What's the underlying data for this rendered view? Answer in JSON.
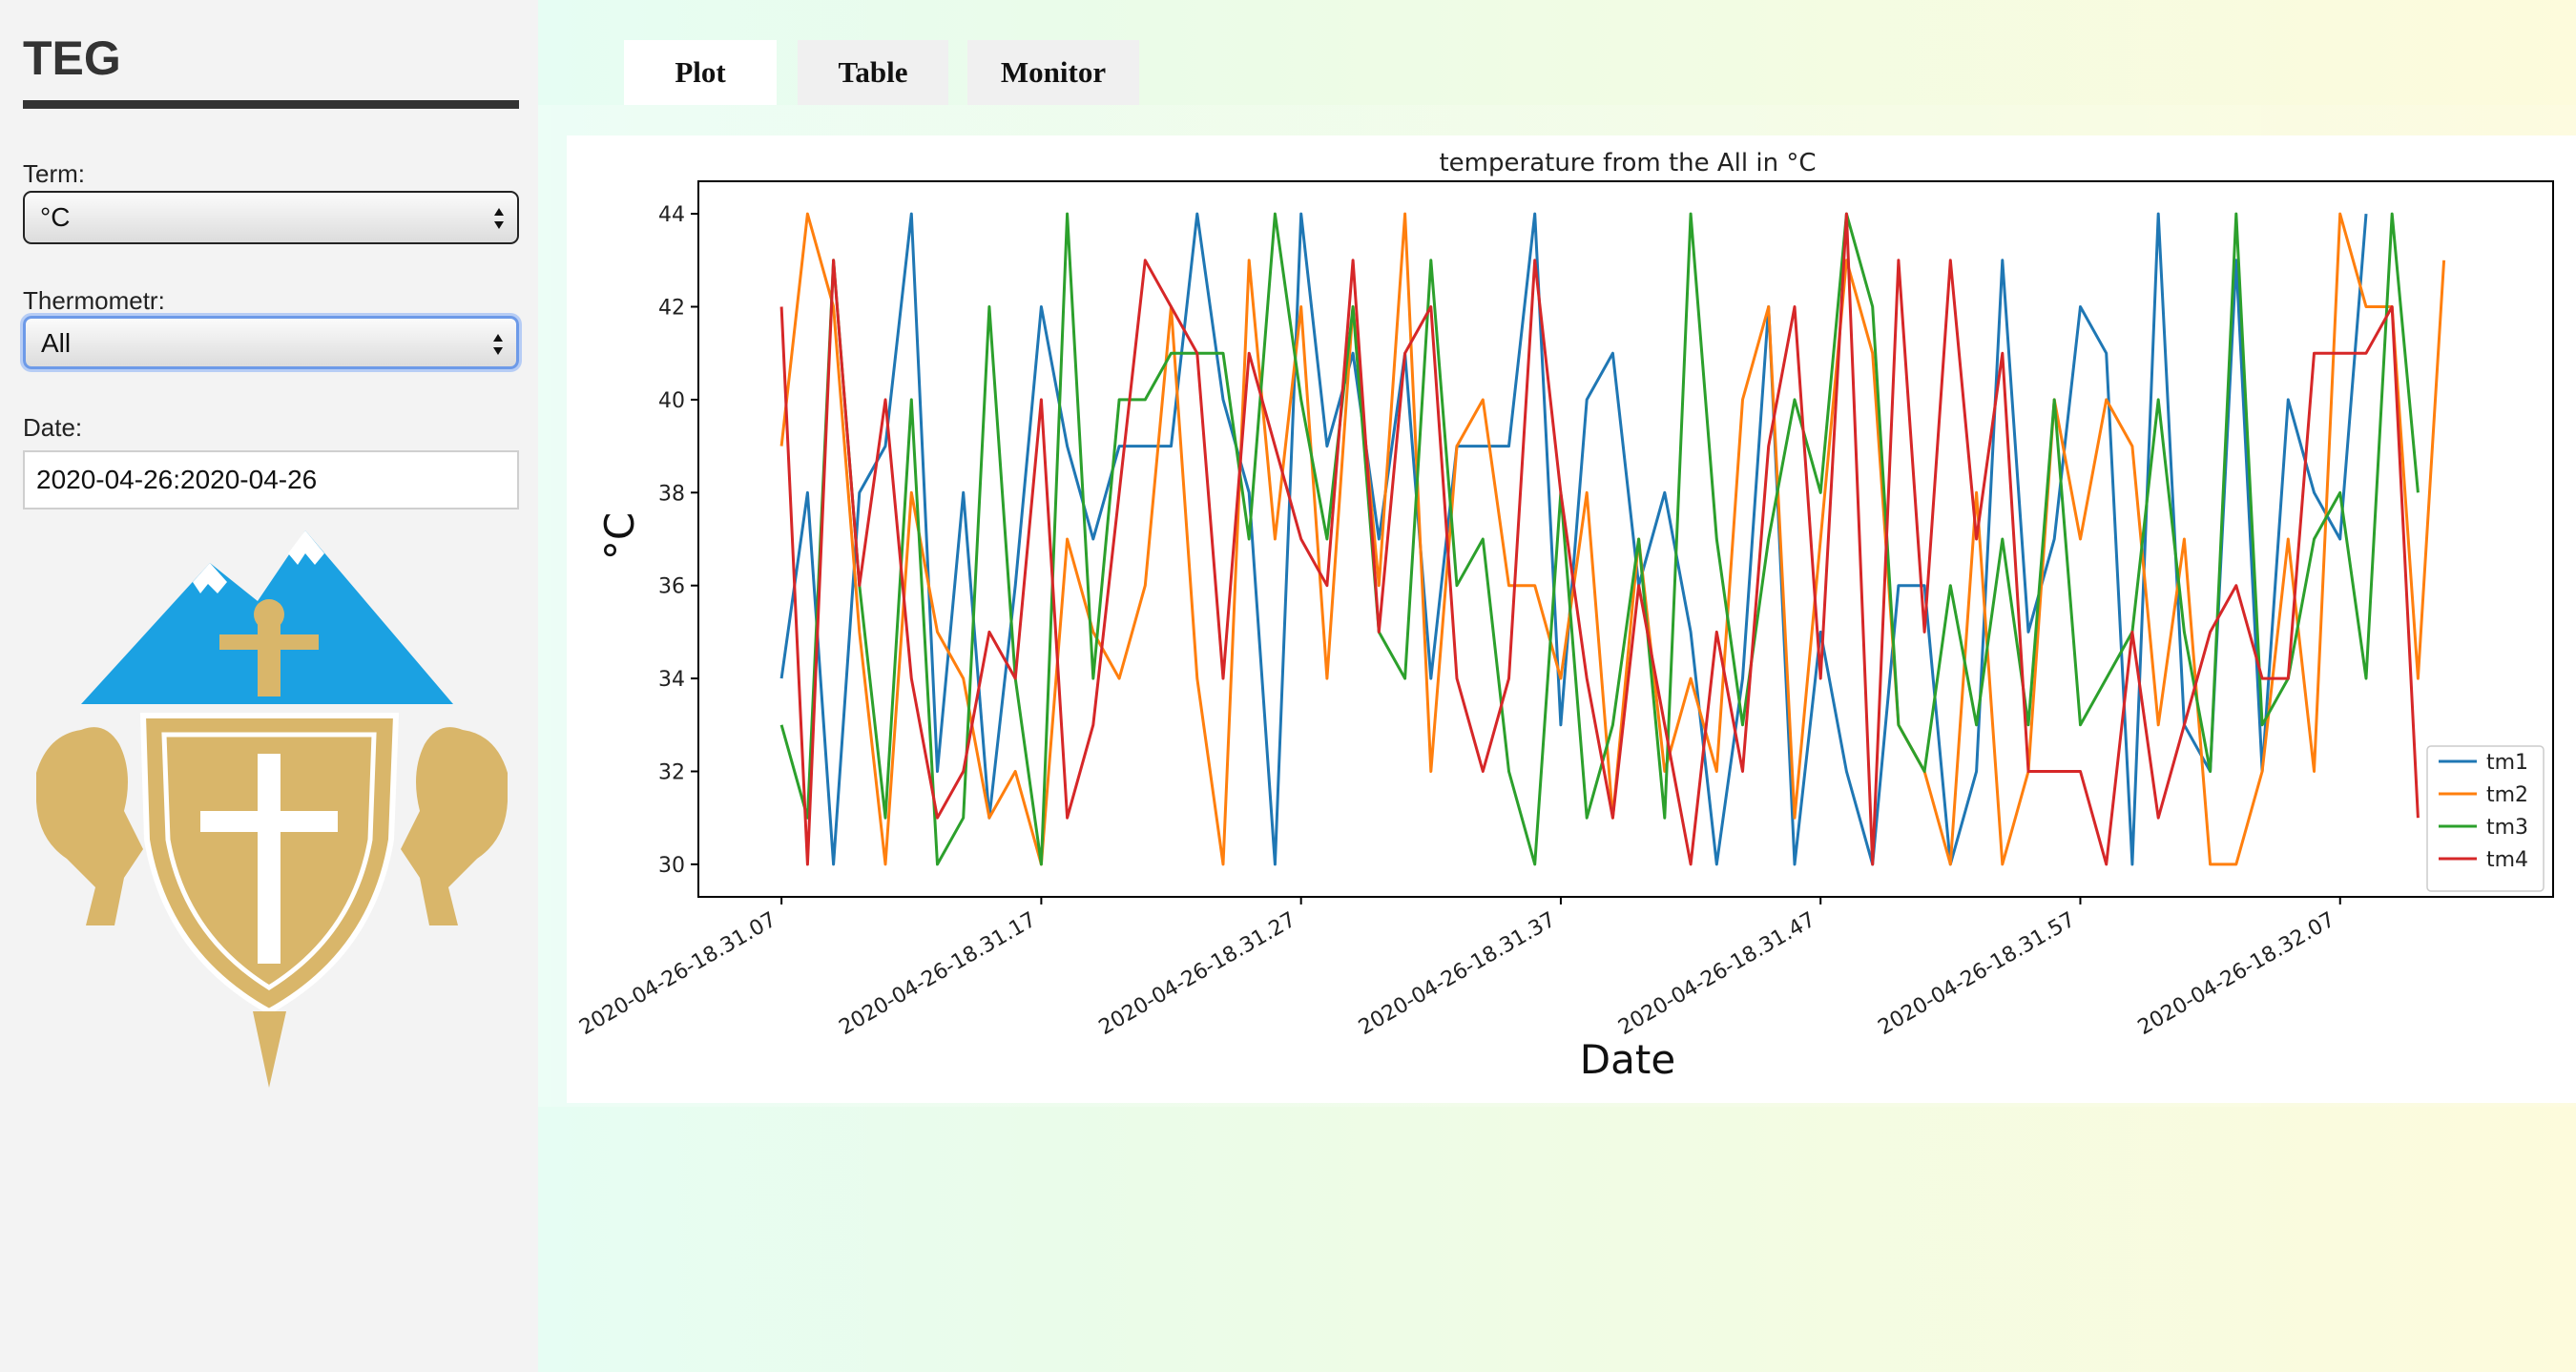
{
  "sidebar": {
    "app_title": "TEG",
    "term_label": "Term:",
    "term_value": "°C",
    "thermometer_label": "Thermometr:",
    "thermometer_value": "All",
    "date_label": "Date:",
    "date_value": "2020-04-26:2020-04-26"
  },
  "tabs": [
    {
      "label": "Plot",
      "active": true
    },
    {
      "label": "Table",
      "active": false
    },
    {
      "label": "Monitor",
      "active": false
    }
  ],
  "colors": {
    "tm1": "#1f77b4",
    "tm2": "#ff7f0e",
    "tm3": "#2ca02c",
    "tm4": "#d62728",
    "logo_mountain": "#1ba1e2",
    "logo_gold": "#d9b66a"
  },
  "icons": [
    "select-arrows-icon",
    "coat-of-arms-logo"
  ],
  "chart_data": {
    "type": "line",
    "title": "temperature from the All in °C",
    "xlabel": "Date",
    "ylabel": "°C",
    "ylim": [
      29.3,
      44.7
    ],
    "y_ticks": [
      30,
      32,
      34,
      36,
      38,
      40,
      42,
      44
    ],
    "x_ticks": [
      {
        "x": 0,
        "label": "2020-04-26-18.31.07"
      },
      {
        "x": 10,
        "label": "2020-04-26-18.31.17"
      },
      {
        "x": 20,
        "label": "2020-04-26-18.31.27"
      },
      {
        "x": 30,
        "label": "2020-04-26-18.31.37"
      },
      {
        "x": 40,
        "label": "2020-04-26-18.31.47"
      },
      {
        "x": 50,
        "label": "2020-04-26-18.31.57"
      },
      {
        "x": 60,
        "label": "2020-04-26-18.32.07"
      }
    ],
    "x_unit": "seconds",
    "x_range": [
      -3.2,
      68.2
    ],
    "grid": false,
    "legend_position": "bottom-right",
    "series": [
      {
        "name": "tm1",
        "values": [
          34,
          38,
          30,
          38,
          39,
          44,
          32,
          38,
          31,
          36,
          42,
          39,
          37,
          39,
          39,
          39,
          44,
          40,
          38,
          30,
          44,
          39,
          41,
          37,
          41,
          34,
          39,
          39,
          39,
          44,
          33,
          40,
          41,
          36,
          38,
          35,
          30,
          34,
          42,
          30,
          35,
          32,
          30,
          36,
          36,
          30,
          32,
          43,
          35,
          37,
          42,
          41,
          30,
          44,
          33,
          32,
          43,
          32,
          40,
          38,
          37,
          44
        ]
      },
      {
        "name": "tm2",
        "values": [
          39,
          44,
          42,
          35,
          30,
          38,
          35,
          34,
          31,
          32,
          30,
          37,
          35,
          34,
          36,
          42,
          34,
          30,
          43,
          37,
          42,
          34,
          42,
          36,
          44,
          32,
          39,
          40,
          36,
          36,
          34,
          38,
          31,
          37,
          32,
          34,
          32,
          40,
          42,
          31,
          37,
          43,
          41,
          33,
          32,
          30,
          38,
          30,
          32,
          40,
          37,
          40,
          39,
          33,
          37,
          30,
          30,
          32,
          37,
          32,
          44,
          42,
          42,
          34,
          43
        ]
      },
      {
        "name": "tm3",
        "values": [
          33,
          31,
          43,
          36,
          31,
          40,
          30,
          31,
          42,
          34,
          30,
          44,
          34,
          40,
          40,
          41,
          41,
          41,
          37,
          44,
          40,
          37,
          42,
          35,
          34,
          43,
          36,
          37,
          32,
          30,
          38,
          31,
          33,
          37,
          31,
          44,
          37,
          33,
          37,
          40,
          38,
          44,
          42,
          33,
          32,
          36,
          33,
          37,
          33,
          40,
          33,
          34,
          35,
          40,
          35,
          32,
          44,
          33,
          34,
          37,
          38,
          34,
          44,
          38
        ]
      },
      {
        "name": "tm4",
        "values": [
          42,
          30,
          43,
          36,
          40,
          34,
          31,
          32,
          35,
          34,
          40,
          31,
          33,
          38,
          43,
          42,
          41,
          34,
          41,
          39,
          37,
          36,
          43,
          35,
          41,
          42,
          34,
          32,
          34,
          43,
          38,
          34,
          31,
          36,
          33,
          30,
          35,
          32,
          39,
          42,
          34,
          44,
          30,
          43,
          35,
          43,
          37,
          41,
          32,
          32,
          32,
          30,
          35,
          31,
          33,
          35,
          36,
          34,
          34,
          41,
          41,
          41,
          42,
          31
        ]
      }
    ]
  }
}
